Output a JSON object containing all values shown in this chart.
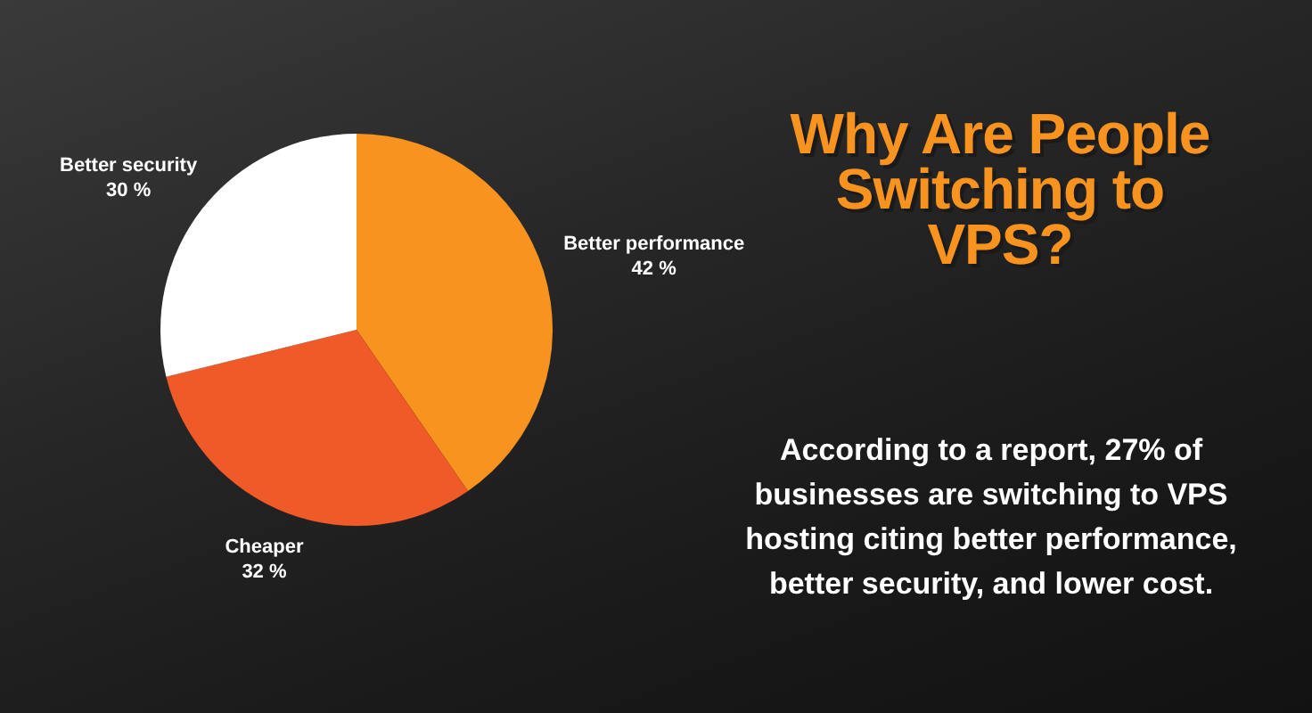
{
  "chart_data": {
    "type": "pie",
    "title": "Why Are People Switching to VPS?",
    "subtitle": "According to a report, 27% of businesses are switching to VPS hosting citing better performance, better security, and lower cost.",
    "categories": [
      "Better performance",
      "Cheaper",
      "Better security"
    ],
    "values": [
      42,
      32,
      30
    ],
    "colors": [
      "#f7931e",
      "#f05a28",
      "#ffffff"
    ],
    "value_labels": [
      "42 %",
      "32 %",
      "30 %"
    ]
  }
}
